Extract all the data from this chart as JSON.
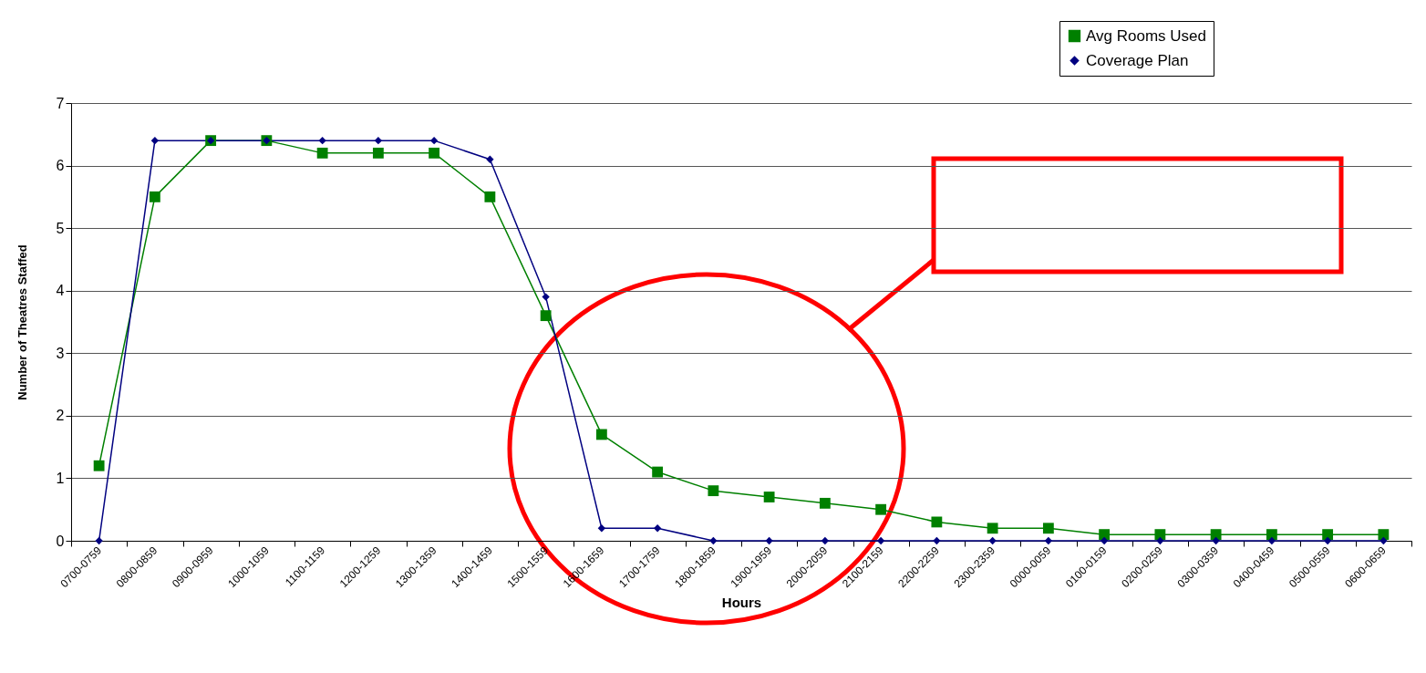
{
  "chart_data": {
    "type": "line",
    "xlabel": "Hours",
    "ylabel": "Number of Theatres Staffed",
    "categories": [
      "0700-0759",
      "0800-0859",
      "0900-0959",
      "1000-1059",
      "1100-1159",
      "1200-1259",
      "1300-1359",
      "1400-1459",
      "1500-1559",
      "1600-1659",
      "1700-1759",
      "1800-1859",
      "1900-1959",
      "2000-2059",
      "2100-2159",
      "2200-2259",
      "2300-2359",
      "0000-0059",
      "0100-0159",
      "0200-0259",
      "0300-0359",
      "0400-0459",
      "0500-0559",
      "0600-0659"
    ],
    "series": [
      {
        "name": "Avg Rooms Used",
        "color": "#008000",
        "marker": "square",
        "values": [
          1.2,
          5.5,
          6.4,
          6.4,
          6.2,
          6.2,
          6.2,
          5.5,
          3.6,
          1.7,
          1.1,
          0.8,
          0.7,
          0.6,
          0.5,
          0.3,
          0.2,
          0.2,
          0.1,
          0.1,
          0.1,
          0.1,
          0.1,
          0.1
        ]
      },
      {
        "name": "Coverage Plan",
        "color": "#000080",
        "marker": "diamond",
        "values": [
          0,
          6.4,
          6.4,
          6.4,
          6.4,
          6.4,
          6.4,
          6.1,
          3.9,
          0.2,
          0.2,
          0,
          0,
          0,
          0,
          0,
          0,
          0,
          0,
          0,
          0,
          0,
          0,
          0
        ]
      }
    ],
    "ylim": [
      0,
      7
    ],
    "yticks": [
      0,
      1,
      2,
      3,
      4,
      5,
      6,
      7
    ],
    "grid": "y",
    "legend": "top right"
  }
}
